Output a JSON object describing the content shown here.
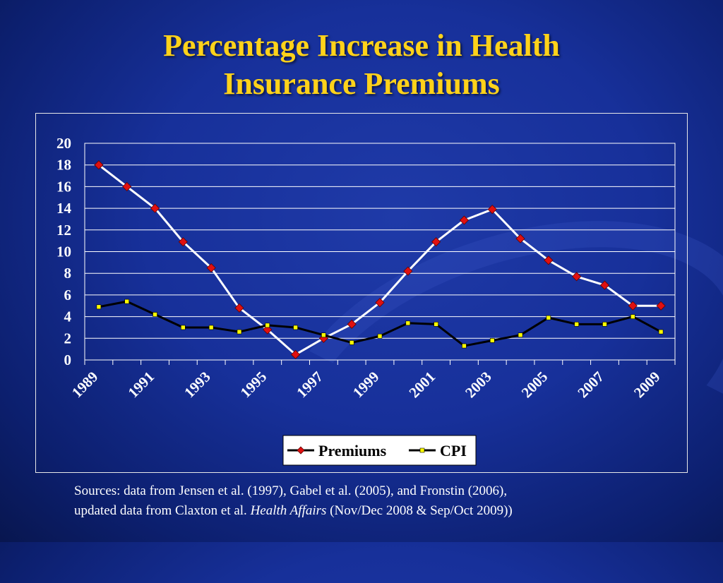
{
  "slide": {
    "title_line1": "Percentage Increase in Health",
    "title_line2": "Insurance Premiums",
    "source_line1": "Sources: data from Jensen et al. (1997), Gabel et al. (2005), and Fronstin (2006),",
    "source_line2_prefix": "updated data from Claxton et al. ",
    "source_line2_italic": "Health Affairs",
    "source_line2_suffix": " (Nov/Dec 2008 & Sep/Oct 2009))"
  },
  "colors": {
    "title": "#ffd21a",
    "premiums_line": "#ffffff",
    "premiums_marker": "#e01010",
    "cpi_line": "#000000",
    "cpi_marker": "#ffff00",
    "grid": "#ffffff",
    "legend_bg": "#ffffff"
  },
  "chart_data": {
    "type": "line",
    "x": [
      1989,
      1990,
      1991,
      1992,
      1993,
      1994,
      1995,
      1996,
      1997,
      1998,
      1999,
      2000,
      2001,
      2002,
      2003,
      2004,
      2005,
      2006,
      2007,
      2008,
      2009
    ],
    "x_tick_labels": [
      "1989",
      "1991",
      "1993",
      "1995",
      "1997",
      "1999",
      "2001",
      "2003",
      "2005",
      "2007",
      "2009"
    ],
    "y_tick_labels": [
      "0",
      "2",
      "4",
      "6",
      "8",
      "10",
      "12",
      "14",
      "16",
      "18",
      "20"
    ],
    "ylim": [
      0,
      20
    ],
    "grid": true,
    "legend_position": "bottom",
    "series": [
      {
        "name": "Premiums",
        "values": [
          18,
          16,
          14,
          10.9,
          8.5,
          4.8,
          2.8,
          0.5,
          2.0,
          3.3,
          5.3,
          8.2,
          10.9,
          12.9,
          13.9,
          11.2,
          9.2,
          7.7,
          6.9,
          5.0,
          5.0
        ]
      },
      {
        "name": "CPI",
        "values": [
          4.9,
          5.4,
          4.2,
          3.0,
          3.0,
          2.6,
          3.2,
          3.0,
          2.3,
          1.6,
          2.2,
          3.4,
          3.3,
          1.3,
          1.8,
          2.3,
          3.9,
          3.3,
          3.3,
          4.0,
          2.6
        ]
      }
    ]
  }
}
